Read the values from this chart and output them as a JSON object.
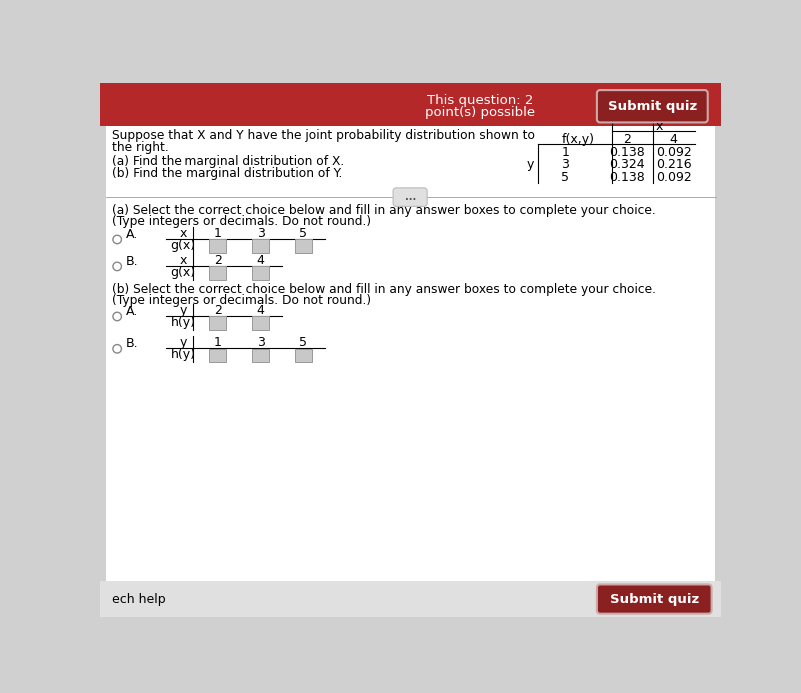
{
  "bg_color": "#d0d0d0",
  "header_bg": "#b5282a",
  "header_text1": "This question: 2",
  "header_text2": "point(s) possible",
  "submit_btn_color": "#7a1a1a",
  "submit_btn_text": "Submit quiz",
  "main_bg": "#f4f4f4",
  "white_bg": "#ffffff",
  "problem_text1": "Suppose that X and Y have the joint probability distribution shown to",
  "problem_text2": "the right.",
  "part_a_text": "(a) Find the marginal distribution of X.",
  "part_b_text": "(b) Find the marginal distribution of Y.",
  "table_header_x": "x",
  "table_header_fxy": "f(x,y)",
  "table_col2": "2",
  "table_col4": "4",
  "table_y_label": "y",
  "table_rows": [
    {
      "y": "1",
      "v2": "0.138",
      "v4": "0.092"
    },
    {
      "y": "3",
      "v2": "0.324",
      "v4": "0.216"
    },
    {
      "y": "5",
      "v2": "0.138",
      "v4": "0.092"
    }
  ],
  "ellipsis_text": "...",
  "part_a_instruction": "(a) Select the correct choice below and fill in any answer boxes to complete your choice.",
  "part_a_instruction2": "(Type integers or decimals. Do not round.)",
  "choice_A_x_vals": [
    "1",
    "3",
    "5"
  ],
  "choice_A_row_label": "g(x)",
  "choice_B_x_vals": [
    "2",
    "4"
  ],
  "choice_B_row_label": "g(x)",
  "part_b_instruction": "(b) Select the correct choice below and fill in any answer boxes to complete your choice.",
  "part_b_instruction2": "(Type integers or decimals. Do not round.)",
  "choice_bA_y_vals": [
    "2",
    "4"
  ],
  "choice_bA_row_label": "h(y)",
  "choice_bB_y_vals": [
    "1",
    "3",
    "5"
  ],
  "choice_bB_row_label": "h(y)",
  "footer_submit_text": "Submit quiz",
  "footer_help_text": "ech help",
  "box_fill": "#c8c8c8",
  "box_edge": "#999999",
  "radio_color": "#666666",
  "line_color": "#444444"
}
